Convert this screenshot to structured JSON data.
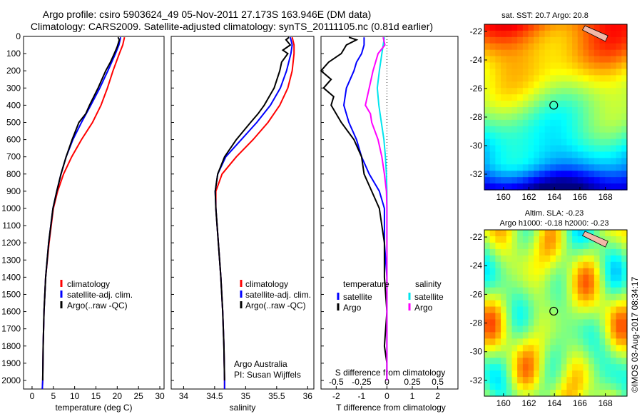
{
  "header": {
    "line1": "Argo profile: csiro 5903624_49 05-Nov-2011 27.173S 163.946E (DM data)",
    "line2": "Climatology: CARS2009. Satellite-adjusted climatology: synTS_20111105.nc (0.81d earlier)"
  },
  "credit": "©IMOS 03-Aug-2017 08:34:17",
  "depth_ticks": [
    0,
    100,
    200,
    300,
    400,
    500,
    600,
    700,
    800,
    900,
    1000,
    1100,
    1200,
    1300,
    1400,
    1500,
    1600,
    1700,
    1800,
    1900,
    2000
  ],
  "colors": {
    "clim": "#ff0000",
    "sat": "#0000ff",
    "argo": "#000000",
    "sat_s": "#00e5ee",
    "argo_s": "#ff00ff"
  },
  "chart_data": [
    {
      "type": "line",
      "xlabel": "temperature (deg C)",
      "xlim": [
        -2,
        31
      ],
      "ylim": [
        2050,
        0
      ],
      "xticks": [
        0,
        5,
        10,
        15,
        20,
        25,
        30
      ],
      "legend": [
        "climatology",
        "satellite-adj. clim.",
        "Argo(..raw -QC)"
      ],
      "series": [
        {
          "name": "climatology",
          "color": "#ff0000",
          "depth": [
            5,
            50,
            100,
            200,
            300,
            400,
            500,
            600,
            700,
            800,
            900,
            1000,
            1200,
            1400,
            1600,
            1800,
            2000,
            2050
          ],
          "values": [
            21.7,
            21.3,
            20.5,
            19.0,
            17.7,
            16.2,
            14.2,
            11.6,
            9.3,
            7.4,
            6.0,
            5.0,
            4.0,
            3.2,
            2.8,
            2.6,
            2.5,
            2.4
          ]
        },
        {
          "name": "satellite-adj. clim.",
          "color": "#0000ff",
          "depth": [
            5,
            50,
            100,
            200,
            300,
            400,
            500,
            600,
            700,
            800,
            900,
            1000,
            1200,
            1400,
            1600,
            1800,
            2000,
            2050
          ],
          "values": [
            20.8,
            20.4,
            19.6,
            17.8,
            15.9,
            13.8,
            11.6,
            9.6,
            8.0,
            6.8,
            5.8,
            4.9,
            3.9,
            3.2,
            2.8,
            2.6,
            2.5,
            2.4
          ]
        },
        {
          "name": "Argo(..raw -QC)",
          "color": "#000000",
          "depth": [
            5,
            20,
            60,
            100,
            150,
            200,
            300,
            400,
            450,
            500,
            600,
            700,
            800,
            900,
            1000,
            1200,
            1400,
            1600,
            1800,
            2000
          ],
          "values": [
            20.2,
            20.5,
            20.0,
            19.3,
            18.4,
            17.3,
            15.5,
            13.5,
            12.6,
            11.0,
            9.4,
            8.0,
            6.8,
            5.8,
            4.9,
            3.9,
            3.2,
            2.8,
            2.6,
            2.5
          ]
        }
      ]
    },
    {
      "type": "line",
      "xlabel": "salinity",
      "xlim": [
        33.8,
        36.1
      ],
      "ylim": [
        2050,
        0
      ],
      "xticks": [
        34,
        34.5,
        35,
        35.5,
        36
      ],
      "legend": [
        "climatology",
        "satellite-adj. clim.",
        "Argo(..raw -QC)"
      ],
      "annotation": [
        "Argo Australia",
        "PI: Susan Wijffels"
      ],
      "series": [
        {
          "name": "climatology",
          "color": "#ff0000",
          "depth": [
            5,
            50,
            100,
            200,
            300,
            400,
            500,
            600,
            700,
            800,
            900,
            1000,
            1200,
            1400,
            1600,
            1800,
            2000,
            2050
          ],
          "values": [
            35.75,
            35.78,
            35.78,
            35.75,
            35.68,
            35.55,
            35.36,
            35.12,
            34.85,
            34.62,
            34.52,
            34.52,
            34.56,
            34.6,
            34.63,
            34.65,
            34.66,
            34.66
          ]
        },
        {
          "name": "satellite-adj. clim.",
          "color": "#0000ff",
          "depth": [
            5,
            50,
            100,
            200,
            300,
            400,
            500,
            600,
            700,
            800,
            900,
            1000,
            1200,
            1400,
            1600,
            1800,
            2000,
            2050
          ],
          "values": [
            35.72,
            35.75,
            35.73,
            35.66,
            35.56,
            35.4,
            35.18,
            34.93,
            34.68,
            34.55,
            34.51,
            34.52,
            34.56,
            34.6,
            34.63,
            34.65,
            34.66,
            34.66
          ]
        },
        {
          "name": "Argo(..raw -QC)",
          "color": "#000000",
          "depth": [
            5,
            20,
            50,
            80,
            100,
            150,
            200,
            300,
            400,
            450,
            500,
            600,
            700,
            800,
            900,
            1000,
            1200,
            1400,
            1600,
            1800,
            2000
          ],
          "values": [
            35.7,
            35.65,
            35.72,
            35.6,
            35.68,
            35.58,
            35.55,
            35.46,
            35.3,
            35.2,
            35.08,
            34.85,
            34.66,
            34.55,
            34.51,
            34.52,
            34.56,
            34.6,
            34.63,
            34.65,
            34.66
          ]
        }
      ]
    },
    {
      "type": "line",
      "xlabel": "T difference from climatology",
      "top_label": "S difference from climatology",
      "xlim": [
        -2.6,
        2.8
      ],
      "ylim": [
        2050,
        0
      ],
      "xticks": [
        -2,
        -1,
        0,
        1,
        2
      ],
      "top_ticks": [
        "-0.5",
        "-0.25",
        "0",
        "0.25",
        "0.5"
      ],
      "legend_left_title": "temperature",
      "legend_right_title": "salinity",
      "legend_left": [
        "satellite",
        "Argo"
      ],
      "legend_right": [
        "satellite",
        "Argo"
      ],
      "series": [
        {
          "name": "satellite",
          "group": "temperature",
          "color": "#0000ff",
          "depth": [
            5,
            50,
            100,
            150,
            200,
            300,
            400,
            500,
            600,
            700,
            800,
            900,
            1000,
            1200,
            1400,
            1600,
            1800,
            2000
          ],
          "values": [
            -0.9,
            -0.9,
            -1.0,
            -1.2,
            -1.3,
            -1.6,
            -1.7,
            -1.5,
            -1.2,
            -1.0,
            -0.7,
            -0.3,
            -0.1,
            -0.1,
            0,
            0,
            0,
            0
          ]
        },
        {
          "name": "Argo",
          "group": "temperature",
          "color": "#000000",
          "depth": [
            5,
            20,
            50,
            100,
            150,
            200,
            250,
            300,
            350,
            400,
            500,
            600,
            700,
            800,
            900,
            1000,
            1100,
            1200,
            1400,
            1600,
            1800,
            1900,
            2000
          ],
          "values": [
            -1.5,
            -1.2,
            -1.6,
            -1.8,
            -2.3,
            -2.6,
            -2.2,
            -2.5,
            -2.1,
            -2.2,
            -1.8,
            -1.3,
            -1.0,
            -0.9,
            -0.6,
            -0.3,
            -0.2,
            -0.1,
            -0.1,
            0,
            -0.1,
            0,
            0
          ]
        },
        {
          "name": "satellite",
          "group": "salinity",
          "color": "#00e5ee",
          "depth": [
            5,
            100,
            200,
            300,
            400,
            500,
            600,
            700,
            800,
            900,
            1000,
            1200,
            1400,
            1600,
            1800,
            2000
          ],
          "values": [
            -0.1,
            -0.2,
            -0.3,
            -0.38,
            -0.32,
            -0.22,
            -0.12,
            -0.06,
            -0.02,
            0,
            0,
            0,
            0,
            0,
            0,
            0
          ]
        },
        {
          "name": "Argo",
          "group": "salinity",
          "color": "#ff00ff",
          "depth": [
            5,
            50,
            100,
            200,
            300,
            400,
            450,
            500,
            600,
            700,
            800,
            900,
            1000,
            1200,
            1400,
            1600,
            1800,
            2000
          ],
          "values": [
            -0.15,
            -0.08,
            -0.35,
            -0.55,
            -0.7,
            -0.85,
            -0.65,
            -0.6,
            -0.35,
            -0.2,
            -0.1,
            -0.02,
            0,
            0,
            0,
            0,
            0,
            0
          ]
        }
      ]
    },
    {
      "type": "heatmap",
      "title": "sat. SST: 20.7 Argo: 20.8",
      "xlim": [
        158.5,
        169.7
      ],
      "ylim": [
        -33.1,
        -21.5
      ],
      "xticks": [
        160,
        162,
        164,
        166,
        168
      ],
      "yticks": [
        -22,
        -24,
        -26,
        -28,
        -30,
        -32
      ],
      "marker": {
        "lon": 163.946,
        "lat": -27.173
      }
    },
    {
      "type": "heatmap",
      "title": "Altim. SLA: -0.23",
      "subtitle": "Argo h1000: -0.18 h2000: -0.23",
      "xlim": [
        158.5,
        169.7
      ],
      "ylim": [
        -33.1,
        -21.5
      ],
      "xticks": [
        160,
        162,
        164,
        166,
        168
      ],
      "yticks": [
        -22,
        -24,
        -26,
        -28,
        -30,
        -32
      ],
      "marker": {
        "lon": 163.946,
        "lat": -27.173
      }
    }
  ]
}
